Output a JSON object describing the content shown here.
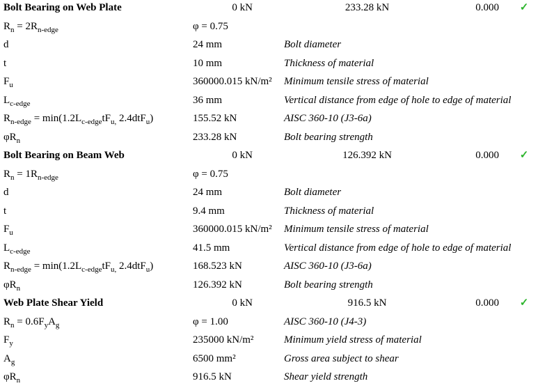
{
  "colors": {
    "pass_green": "#2db52d",
    "text": "#000000"
  },
  "icons": {
    "pass": "✓"
  },
  "sections": [
    {
      "title": "Bolt Bearing on Web Plate",
      "demand": "0 kN",
      "capacity": "233.28 kN",
      "ratio": "0.000",
      "rows": [
        {
          "label": [
            {
              "t": "R"
            },
            {
              "s": "n"
            },
            {
              "t": " = 2R"
            },
            {
              "s": "n-edge"
            }
          ],
          "value": "φ = 0.75",
          "desc": ""
        },
        {
          "label": [
            {
              "t": "d"
            }
          ],
          "value": "24 mm",
          "desc": "Bolt diameter"
        },
        {
          "label": [
            {
              "t": "t"
            }
          ],
          "value": "10 mm",
          "desc": "Thickness of material"
        },
        {
          "label": [
            {
              "t": "F"
            },
            {
              "s": "u"
            }
          ],
          "value": "360000.015 kN/m²",
          "desc": "Minimum tensile stress of material"
        },
        {
          "label": [
            {
              "t": "L"
            },
            {
              "s": "c-edge"
            }
          ],
          "value": "36 mm",
          "desc": "Vertical distance from edge of hole to edge of material"
        },
        {
          "label": [
            {
              "t": "R"
            },
            {
              "s": "n-edge"
            },
            {
              "t": " = min(1.2L"
            },
            {
              "s": "c-edge"
            },
            {
              "t": "tF"
            },
            {
              "s": "u,"
            },
            {
              "t": " 2.4dtF"
            },
            {
              "s": "u"
            },
            {
              "t": ")"
            }
          ],
          "value": "155.52 kN",
          "desc": "AISC 360-10 (J3-6a)"
        },
        {
          "label": [
            {
              "t": "φR"
            },
            {
              "s": "n"
            }
          ],
          "value": "233.28 kN",
          "desc": "Bolt bearing strength"
        }
      ]
    },
    {
      "title": "Bolt Bearing on Beam Web",
      "demand": "0 kN",
      "capacity": "126.392 kN",
      "ratio": "0.000",
      "rows": [
        {
          "label": [
            {
              "t": "R"
            },
            {
              "s": "n"
            },
            {
              "t": " = 1R"
            },
            {
              "s": "n-edge"
            }
          ],
          "value": "φ = 0.75",
          "desc": ""
        },
        {
          "label": [
            {
              "t": "d"
            }
          ],
          "value": "24 mm",
          "desc": "Bolt diameter"
        },
        {
          "label": [
            {
              "t": "t"
            }
          ],
          "value": "9.4 mm",
          "desc": "Thickness of material"
        },
        {
          "label": [
            {
              "t": "F"
            },
            {
              "s": "u"
            }
          ],
          "value": "360000.015 kN/m²",
          "desc": "Minimum tensile stress of material"
        },
        {
          "label": [
            {
              "t": "L"
            },
            {
              "s": "c-edge"
            }
          ],
          "value": "41.5 mm",
          "desc": "Vertical distance from edge of hole to edge of material"
        },
        {
          "label": [
            {
              "t": "R"
            },
            {
              "s": "n-edge"
            },
            {
              "t": " = min(1.2L"
            },
            {
              "s": "c-edge"
            },
            {
              "t": "tF"
            },
            {
              "s": "u,"
            },
            {
              "t": " 2.4dtF"
            },
            {
              "s": "u"
            },
            {
              "t": ")"
            }
          ],
          "value": "168.523 kN",
          "desc": "AISC 360-10 (J3-6a)"
        },
        {
          "label": [
            {
              "t": "φR"
            },
            {
              "s": "n"
            }
          ],
          "value": "126.392 kN",
          "desc": "Bolt bearing strength"
        }
      ]
    },
    {
      "title": "Web Plate Shear Yield",
      "demand": "0 kN",
      "capacity": "916.5 kN",
      "ratio": "0.000",
      "rows": [
        {
          "label": [
            {
              "t": "R"
            },
            {
              "s": "n"
            },
            {
              "t": " = 0.6F"
            },
            {
              "s": "y"
            },
            {
              "t": "A"
            },
            {
              "s": "g"
            }
          ],
          "value": "φ = 1.00",
          "desc": "AISC 360-10 (J4-3)"
        },
        {
          "label": [
            {
              "t": "F"
            },
            {
              "s": "y"
            }
          ],
          "value": "235000 kN/m²",
          "desc": "Minimum yield stress of material"
        },
        {
          "label": [
            {
              "t": "A"
            },
            {
              "s": "g"
            }
          ],
          "value": "6500 mm²",
          "desc": "Gross area subject to shear"
        },
        {
          "label": [
            {
              "t": "φR"
            },
            {
              "s": "n"
            }
          ],
          "value": "916.5 kN",
          "desc": "Shear yield strength"
        }
      ]
    }
  ]
}
